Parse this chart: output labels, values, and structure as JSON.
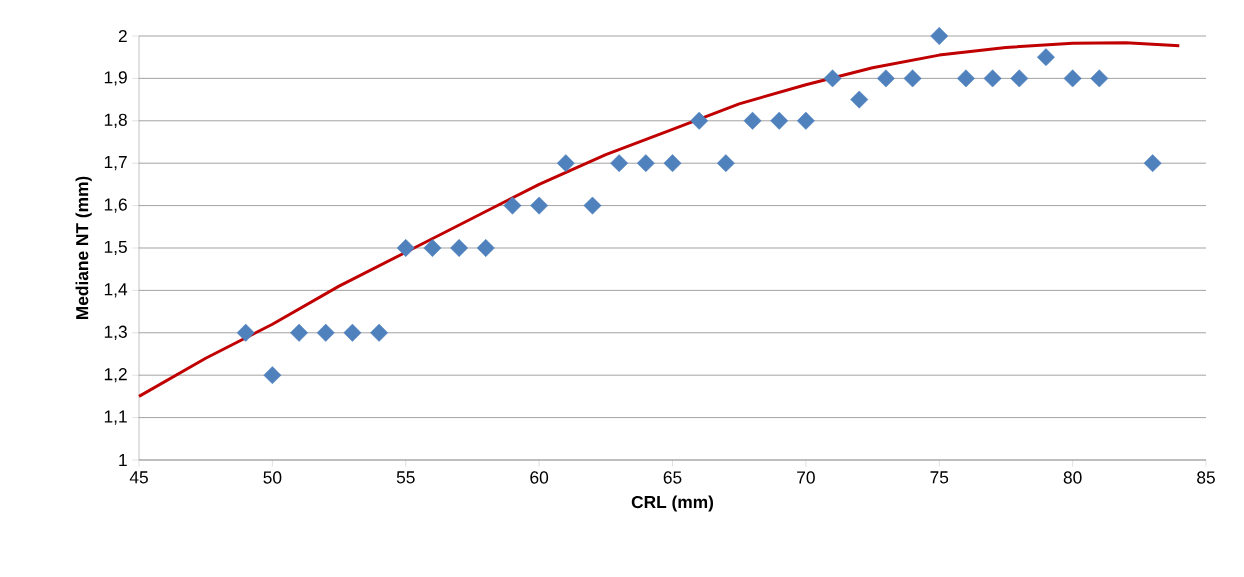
{
  "chart_data": {
    "type": "scatter",
    "xlabel": "CRL (mm)",
    "ylabel": "Mediane NT (mm)",
    "xlim": [
      45,
      85
    ],
    "xticks": [
      45,
      50,
      55,
      60,
      65,
      70,
      75,
      80,
      85
    ],
    "ylim": [
      1,
      2
    ],
    "yticks": [
      1,
      {
        "value": 1.1,
        "label": "1,1"
      },
      {
        "value": 1.2,
        "label": "1,2"
      },
      {
        "value": 1.3,
        "label": "1,3"
      },
      {
        "value": 1.4,
        "label": "1,4"
      },
      {
        "value": 1.5,
        "label": "1,5"
      },
      {
        "value": 1.6,
        "label": "1,6"
      },
      {
        "value": 1.7,
        "label": "1,7"
      },
      {
        "value": 1.8,
        "label": "1,8"
      },
      {
        "value": 1.9,
        "label": "1,9"
      },
      2
    ],
    "grid": "y",
    "series": [
      {
        "type": "line",
        "color": "#c00000",
        "marker": "none",
        "line_style": "solid",
        "x": [
          45,
          47.5,
          50,
          52.5,
          55,
          57.5,
          60,
          62.5,
          65,
          67.5,
          70,
          72.5,
          75,
          77.5,
          80,
          82,
          84
        ],
        "values": [
          1.15,
          1.24,
          1.32,
          1.41,
          1.49,
          1.57,
          1.65,
          1.72,
          1.78,
          1.84,
          1.885,
          1.925,
          1.955,
          1.973,
          1.983,
          1.984,
          1.977
        ]
      },
      {
        "color": "#4f81bd",
        "marker": "diamond",
        "x": [
          49,
          50,
          51,
          52,
          53,
          54,
          55,
          56,
          57,
          58,
          59,
          60,
          61,
          62,
          63,
          64,
          65,
          66,
          67,
          68,
          69,
          70,
          71,
          72,
          73,
          74,
          75,
          76,
          77,
          78,
          79,
          80,
          81,
          83
        ],
        "values": [
          1.3,
          1.2,
          1.3,
          1.3,
          1.3,
          1.3,
          1.5,
          1.5,
          1.5,
          1.5,
          1.6,
          1.6,
          1.7,
          1.6,
          1.7,
          1.7,
          1.7,
          1.8,
          1.7,
          1.8,
          1.8,
          1.8,
          1.9,
          1.85,
          1.9,
          1.9,
          2.0,
          1.9,
          1.9,
          1.9,
          1.95,
          1.9,
          1.9,
          1.7
        ]
      }
    ]
  }
}
